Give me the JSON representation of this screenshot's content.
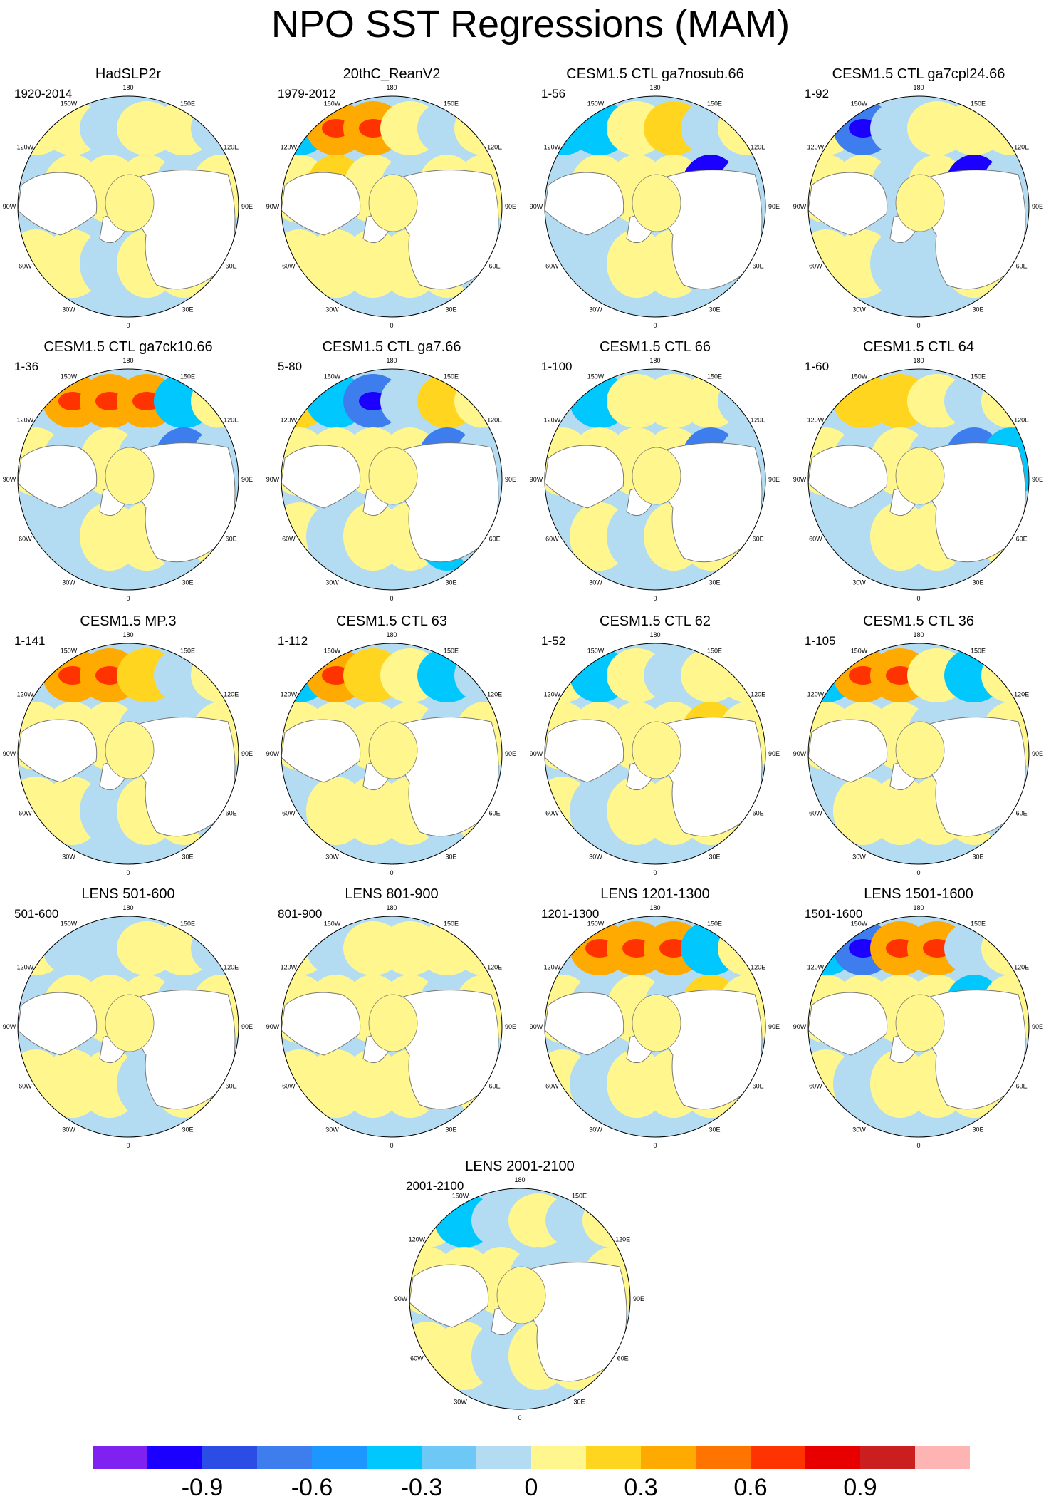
{
  "title": "NPO SST Regressions (MAM)",
  "lon_labels": [
    "180",
    "150E",
    "120E",
    "90E",
    "60E",
    "30E",
    "0",
    "30W",
    "60W",
    "90W",
    "120W",
    "150W"
  ],
  "panels": [
    {
      "title": "HadSLP2r",
      "years": "1920-2014",
      "pattern": [
        [
          1,
          0,
          -1,
          0,
          1,
          -1
        ],
        [
          -1,
          0,
          1,
          0,
          -1,
          1
        ],
        [
          1,
          0,
          -1,
          0,
          1,
          0
        ]
      ]
    },
    {
      "title": "20thC_ReanV2",
      "years": "1979-2012",
      "pattern": [
        [
          -2,
          3,
          3,
          1,
          -1,
          0
        ],
        [
          1,
          2,
          0,
          -1,
          0,
          1
        ],
        [
          0,
          1,
          1,
          0,
          1,
          -1
        ]
      ]
    },
    {
      "title": "CESM1.5 CTL ga7nosub.66",
      "years": "1-56",
      "pattern": [
        [
          -2,
          -2,
          1,
          2,
          -1,
          0
        ],
        [
          -1,
          0,
          1,
          0,
          -4,
          -1
        ],
        [
          -1,
          -1,
          1,
          0,
          -1,
          -1
        ]
      ]
    },
    {
      "title": "CESM1.5 CTL ga7cpl24.66",
      "years": "1-92",
      "pattern": [
        [
          1,
          -3,
          -1,
          1,
          1,
          0
        ],
        [
          1,
          0,
          -1,
          0,
          -4,
          -1
        ],
        [
          0,
          1,
          -1,
          -1,
          1,
          0
        ]
      ]
    },
    {
      "title": "CESM1.5 CTL ga7ck10.66",
      "years": "1-36",
      "pattern": [
        [
          -1,
          3,
          3,
          3,
          -2,
          0
        ],
        [
          1,
          -1,
          0,
          -1,
          -3,
          -1
        ],
        [
          -1,
          -1,
          1,
          1,
          -1,
          0
        ]
      ]
    },
    {
      "title": "CESM1.5 CTL ga7.66",
      "years": "5-80",
      "pattern": [
        [
          2,
          -2,
          -3,
          -1,
          2,
          1
        ],
        [
          1,
          1,
          0,
          0,
          -3,
          -1
        ],
        [
          1,
          -1,
          1,
          0,
          -2,
          -1
        ]
      ]
    },
    {
      "title": "CESM1.5 CTL 66",
      "years": "1-100",
      "pattern": [
        [
          -1,
          -2,
          1,
          1,
          0,
          -1
        ],
        [
          0,
          1,
          1,
          0,
          -3,
          -1
        ],
        [
          -1,
          1,
          -1,
          0,
          1,
          0
        ]
      ]
    },
    {
      "title": "CESM1.5 CTL 64",
      "years": "1-60",
      "pattern": [
        [
          -1,
          2,
          2,
          1,
          -1,
          0
        ],
        [
          1,
          -1,
          0,
          -1,
          -3,
          -2
        ],
        [
          -1,
          -1,
          1,
          0,
          -1,
          0
        ]
      ]
    },
    {
      "title": "CESM1.5 MP.3",
      "years": "1-141",
      "pattern": [
        [
          -1,
          3,
          3,
          2,
          -1,
          1
        ],
        [
          1,
          0,
          1,
          -1,
          -1,
          0
        ],
        [
          0,
          1,
          -1,
          1,
          1,
          -1
        ]
      ]
    },
    {
      "title": "CESM1.5 CTL 63",
      "years": "1-112",
      "pattern": [
        [
          -2,
          3,
          2,
          1,
          -2,
          -1
        ],
        [
          1,
          0,
          1,
          0,
          -1,
          1
        ],
        [
          -1,
          1,
          0,
          1,
          -1,
          0
        ]
      ]
    },
    {
      "title": "CESM1.5 CTL 62",
      "years": "1-52",
      "pattern": [
        [
          1,
          -2,
          1,
          -1,
          1,
          0
        ],
        [
          1,
          0,
          1,
          0,
          2,
          1
        ],
        [
          1,
          -1,
          1,
          0,
          1,
          0
        ]
      ]
    },
    {
      "title": "CESM1.5 CTL 36",
      "years": "1-105",
      "pattern": [
        [
          -2,
          3,
          3,
          1,
          -2,
          1
        ],
        [
          1,
          0,
          1,
          -1,
          -1,
          1
        ],
        [
          -1,
          1,
          1,
          0,
          1,
          -1
        ]
      ]
    },
    {
      "title": "LENS 501-600",
      "years": "501-600",
      "pattern": [
        [
          1,
          -1,
          -1,
          1,
          1,
          -1
        ],
        [
          -1,
          1,
          0,
          1,
          -1,
          1
        ],
        [
          1,
          0,
          1,
          -1,
          1,
          0
        ]
      ]
    },
    {
      "title": "LENS 801-900",
      "years": "801-900",
      "pattern": [
        [
          1,
          -1,
          1,
          1,
          0,
          1
        ],
        [
          1,
          0,
          1,
          0,
          -1,
          1
        ],
        [
          1,
          1,
          0,
          1,
          -1,
          0
        ]
      ]
    },
    {
      "title": "LENS 1201-1300",
      "years": "1201-1300",
      "pattern": [
        [
          -1,
          3,
          3,
          3,
          -2,
          0
        ],
        [
          1,
          -1,
          0,
          -1,
          2,
          1
        ],
        [
          1,
          -1,
          1,
          0,
          1,
          0
        ]
      ]
    },
    {
      "title": "LENS 1501-1600",
      "years": "1501-1600",
      "pattern": [
        [
          -2,
          -3,
          3,
          3,
          -1,
          0
        ],
        [
          1,
          0,
          1,
          0,
          -2,
          1
        ],
        [
          1,
          -1,
          1,
          0,
          1,
          0
        ]
      ]
    },
    {
      "title": "LENS 2001-2100",
      "years": "2001-2100",
      "pattern": [
        [
          1,
          -2,
          -1,
          1,
          -1,
          0
        ],
        [
          1,
          0,
          1,
          -1,
          -1,
          1
        ],
        [
          1,
          1,
          -1,
          0,
          1,
          0
        ]
      ]
    }
  ],
  "colorbar": {
    "colors": [
      "#7f21f0",
      "#1b00ff",
      "#2c4ce6",
      "#3d7ded",
      "#1e96ff",
      "#00c8ff",
      "#6ec8f5",
      "#b3dcf2",
      "#fff78e",
      "#ffd51f",
      "#ffaa00",
      "#ff7300",
      "#ff3300",
      "#e80000",
      "#cb1f1f",
      "#ffb4b4"
    ],
    "labels": [
      "-0.9",
      "-0.6",
      "-0.3",
      "0",
      "0.3",
      "0.6",
      "0.9"
    ]
  }
}
